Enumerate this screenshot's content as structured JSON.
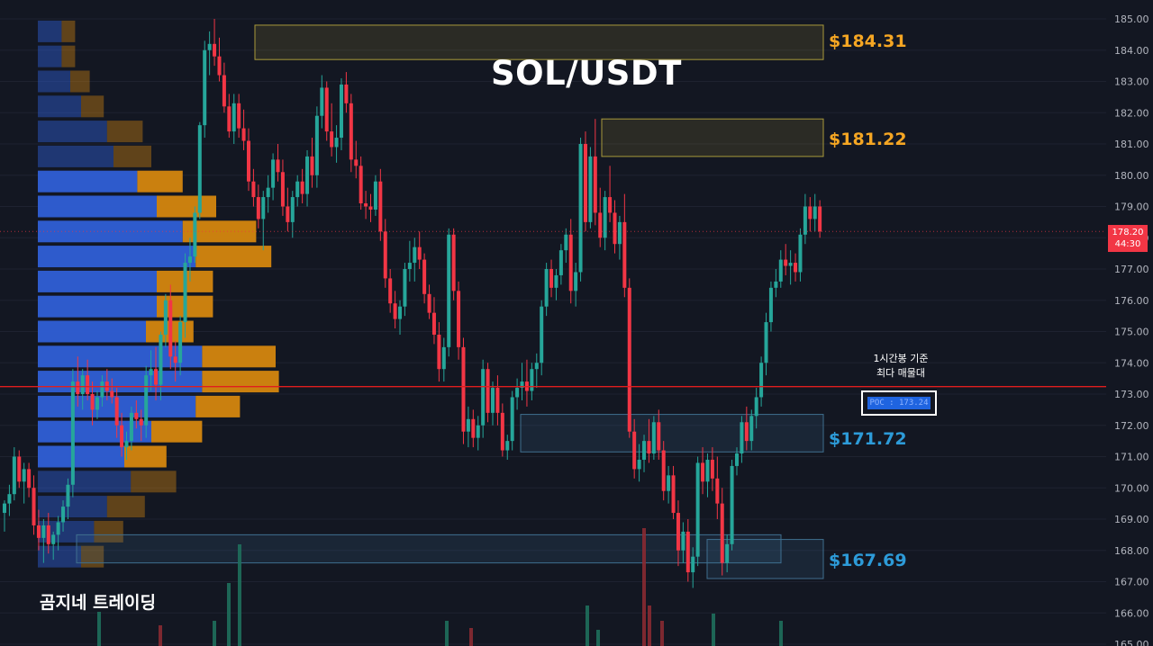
{
  "title": "SOL/USDT",
  "watermark": "곰지네 트레이딩",
  "annotation": {
    "line1": "1시간봉 기준",
    "line2": "최다 매물대",
    "poc_label": "POC : 173.24"
  },
  "levels": [
    {
      "price": 184.31,
      "label": "$184.31",
      "color": "yellow"
    },
    {
      "price": 181.22,
      "label": "$181.22",
      "color": "yellow"
    },
    {
      "price": 171.72,
      "label": "$171.72",
      "color": "blue"
    },
    {
      "price": 167.69,
      "label": "$167.69",
      "color": "blue"
    }
  ],
  "current_price": {
    "value": "178.20",
    "countdown": "44:30"
  },
  "colors": {
    "background": "#131722",
    "bull": "#26a69a",
    "bear": "#f23645",
    "poc_line": "#e01e1e",
    "level_yellow": "#f5a623",
    "level_blue": "#2d9bd8",
    "vp_blue": "#2f5fd6",
    "vp_orange": "#d4860f"
  },
  "chart_data": {
    "type": "candlestick",
    "timeframe": "1h",
    "y_axis": {
      "min": 165,
      "max": 185,
      "ticks": [
        "185.00",
        "184.00",
        "183.00",
        "182.00",
        "181.00",
        "180.00",
        "179.00",
        "178.00",
        "177.00",
        "176.00",
        "175.00",
        "174.00",
        "173.00",
        "172.00",
        "171.00",
        "170.00",
        "169.00",
        "168.00",
        "167.00",
        "166.00",
        "165.00"
      ]
    },
    "poc": 173.24,
    "zones": [
      {
        "top": 184.8,
        "bottom": 183.7,
        "label": "$184.31",
        "style": "yellow"
      },
      {
        "top": 181.8,
        "bottom": 180.6,
        "label": "$181.22",
        "style": "yellow"
      },
      {
        "top": 172.35,
        "bottom": 171.15,
        "label": "$171.72",
        "style": "blue"
      },
      {
        "top": 168.5,
        "bottom": 167.6,
        "label": "",
        "style": "blue"
      },
      {
        "top": 168.35,
        "bottom": 167.1,
        "label": "$167.69",
        "style": "blue"
      }
    ],
    "volume_profile": [
      {
        "price": 184.6,
        "buy": 22,
        "sell": 25
      },
      {
        "price": 183.8,
        "buy": 22,
        "sell": 25
      },
      {
        "price": 183.0,
        "buy": 30,
        "sell": 36
      },
      {
        "price": 182.2,
        "buy": 40,
        "sell": 42
      },
      {
        "price": 181.4,
        "buy": 64,
        "sell": 66
      },
      {
        "price": 180.6,
        "buy": 70,
        "sell": 70
      },
      {
        "price": 179.8,
        "buy": 92,
        "sell": 84
      },
      {
        "price": 179.0,
        "buy": 110,
        "sell": 110
      },
      {
        "price": 178.2,
        "buy": 134,
        "sell": 136
      },
      {
        "price": 177.4,
        "buy": 146,
        "sell": 140
      },
      {
        "price": 176.6,
        "buy": 110,
        "sell": 104
      },
      {
        "price": 175.8,
        "buy": 110,
        "sell": 104
      },
      {
        "price": 175.0,
        "buy": 100,
        "sell": 88
      },
      {
        "price": 174.2,
        "buy": 152,
        "sell": 136
      },
      {
        "price": 173.4,
        "buy": 152,
        "sell": 142
      },
      {
        "price": 172.6,
        "buy": 146,
        "sell": 82
      },
      {
        "price": 171.8,
        "buy": 105,
        "sell": 94
      },
      {
        "price": 171.0,
        "buy": 80,
        "sell": 78
      },
      {
        "price": 170.2,
        "buy": 86,
        "sell": 84
      },
      {
        "price": 169.4,
        "buy": 64,
        "sell": 70
      },
      {
        "price": 168.6,
        "buy": 52,
        "sell": 54
      },
      {
        "price": 167.8,
        "buy": 40,
        "sell": 42
      }
    ],
    "candles": [
      [
        169.2,
        169.6,
        168.6,
        169.5
      ],
      [
        169.5,
        170.1,
        169.1,
        169.8
      ],
      [
        169.8,
        171.3,
        169.6,
        171.0
      ],
      [
        171.0,
        171.2,
        170.0,
        170.2
      ],
      [
        170.2,
        170.8,
        169.5,
        170.6
      ],
      [
        170.6,
        170.8,
        169.7,
        170.0
      ],
      [
        170.0,
        170.4,
        168.5,
        168.8
      ],
      [
        168.8,
        169.3,
        168.0,
        168.4
      ],
      [
        168.4,
        169.0,
        167.6,
        168.8
      ],
      [
        168.8,
        169.2,
        167.9,
        168.2
      ],
      [
        168.2,
        168.6,
        167.7,
        168.5
      ],
      [
        168.5,
        169.1,
        168.0,
        168.9
      ],
      [
        168.9,
        169.6,
        168.6,
        169.4
      ],
      [
        169.4,
        170.3,
        169.0,
        170.1
      ],
      [
        170.1,
        173.8,
        169.7,
        173.4
      ],
      [
        173.4,
        174.2,
        172.6,
        173.0
      ],
      [
        173.0,
        173.8,
        172.5,
        173.6
      ],
      [
        173.6,
        174.1,
        172.8,
        173.0
      ],
      [
        173.0,
        173.4,
        172.0,
        172.5
      ],
      [
        172.5,
        173.1,
        172.2,
        172.9
      ],
      [
        172.9,
        173.6,
        172.6,
        173.4
      ],
      [
        173.4,
        173.8,
        172.8,
        173.1
      ],
      [
        173.1,
        173.5,
        172.7,
        172.9
      ],
      [
        172.9,
        173.2,
        171.6,
        172.0
      ],
      [
        172.0,
        172.4,
        171.0,
        171.3
      ],
      [
        171.3,
        171.8,
        170.9,
        171.5
      ],
      [
        171.5,
        172.6,
        171.2,
        172.4
      ],
      [
        172.4,
        172.8,
        171.9,
        172.2
      ],
      [
        172.2,
        172.5,
        171.5,
        172.0
      ],
      [
        172.0,
        173.9,
        171.6,
        173.6
      ],
      [
        173.6,
        174.4,
        173.1,
        173.8
      ],
      [
        173.8,
        174.5,
        172.8,
        173.3
      ],
      [
        173.3,
        175.0,
        172.8,
        174.9
      ],
      [
        174.9,
        176.2,
        174.5,
        176.0
      ],
      [
        176.0,
        176.5,
        173.8,
        174.2
      ],
      [
        174.2,
        174.7,
        173.4,
        174.0
      ],
      [
        174.0,
        175.5,
        173.6,
        175.3
      ],
      [
        175.3,
        177.5,
        174.8,
        177.2
      ],
      [
        177.2,
        178.0,
        176.6,
        177.4
      ],
      [
        177.4,
        179.0,
        177.2,
        178.8
      ],
      [
        178.8,
        181.7,
        178.6,
        181.6
      ],
      [
        181.6,
        184.3,
        181.2,
        184.0
      ],
      [
        184.0,
        184.6,
        183.2,
        184.2
      ],
      [
        184.2,
        185.0,
        183.5,
        183.8
      ],
      [
        183.8,
        184.4,
        183.0,
        183.2
      ],
      [
        183.2,
        183.6,
        182.0,
        182.2
      ],
      [
        182.2,
        182.6,
        181.2,
        181.4
      ],
      [
        181.4,
        182.6,
        181.0,
        182.3
      ],
      [
        182.3,
        182.6,
        181.2,
        181.5
      ],
      [
        181.5,
        182.1,
        180.8,
        181.1
      ],
      [
        181.1,
        181.5,
        179.5,
        179.8
      ],
      [
        179.8,
        180.2,
        179.0,
        179.3
      ],
      [
        179.3,
        179.7,
        178.3,
        178.6
      ],
      [
        178.6,
        179.5,
        177.6,
        179.3
      ],
      [
        179.3,
        180.0,
        178.8,
        179.6
      ],
      [
        179.6,
        180.7,
        179.2,
        180.5
      ],
      [
        180.5,
        181.0,
        179.8,
        180.1
      ],
      [
        180.1,
        180.5,
        178.7,
        179.0
      ],
      [
        179.0,
        179.6,
        178.2,
        178.5
      ],
      [
        178.5,
        179.5,
        178.0,
        179.3
      ],
      [
        179.3,
        180.0,
        179.0,
        179.8
      ],
      [
        179.8,
        180.2,
        179.1,
        179.4
      ],
      [
        179.4,
        180.8,
        179.0,
        180.6
      ],
      [
        180.6,
        181.2,
        179.6,
        180.0
      ],
      [
        180.0,
        182.2,
        179.6,
        181.9
      ],
      [
        181.9,
        183.2,
        181.5,
        182.8
      ],
      [
        182.8,
        183.0,
        181.1,
        181.4
      ],
      [
        181.4,
        182.3,
        180.6,
        180.9
      ],
      [
        180.9,
        181.6,
        180.4,
        181.2
      ],
      [
        181.2,
        183.1,
        180.8,
        182.9
      ],
      [
        182.9,
        183.3,
        182.0,
        182.3
      ],
      [
        182.3,
        182.6,
        180.1,
        180.5
      ],
      [
        180.5,
        181.1,
        179.9,
        180.3
      ],
      [
        180.3,
        180.6,
        178.9,
        179.1
      ],
      [
        179.1,
        179.5,
        178.6,
        179.0
      ],
      [
        179.0,
        179.4,
        178.5,
        178.9
      ],
      [
        178.9,
        180.0,
        178.7,
        179.8
      ],
      [
        179.8,
        180.2,
        177.9,
        178.2
      ],
      [
        178.2,
        178.6,
        176.4,
        176.7
      ],
      [
        176.7,
        177.0,
        175.6,
        175.9
      ],
      [
        175.9,
        176.3,
        175.1,
        175.4
      ],
      [
        175.4,
        176.0,
        174.9,
        175.8
      ],
      [
        175.8,
        177.2,
        175.5,
        177.0
      ],
      [
        177.0,
        177.9,
        176.6,
        177.2
      ],
      [
        177.2,
        178.0,
        176.6,
        177.7
      ],
      [
        177.7,
        178.2,
        177.0,
        177.3
      ],
      [
        177.3,
        177.5,
        175.9,
        176.2
      ],
      [
        176.2,
        176.5,
        175.4,
        175.6
      ],
      [
        175.6,
        176.1,
        174.6,
        174.9
      ],
      [
        174.9,
        175.3,
        173.4,
        173.8
      ],
      [
        173.8,
        174.8,
        173.4,
        174.5
      ],
      [
        174.5,
        178.3,
        174.2,
        178.1
      ],
      [
        178.1,
        178.3,
        176.0,
        176.3
      ],
      [
        176.3,
        176.6,
        174.1,
        174.5
      ],
      [
        174.5,
        174.8,
        171.4,
        171.8
      ],
      [
        171.8,
        172.6,
        171.3,
        172.2
      ],
      [
        172.2,
        172.5,
        171.3,
        171.6
      ],
      [
        171.6,
        172.3,
        171.2,
        172.0
      ],
      [
        172.0,
        174.1,
        171.6,
        173.8
      ],
      [
        173.8,
        174.0,
        172.1,
        172.4
      ],
      [
        172.4,
        173.4,
        172.0,
        173.2
      ],
      [
        173.2,
        173.6,
        172.0,
        172.4
      ],
      [
        172.4,
        172.7,
        171.0,
        171.2
      ],
      [
        171.2,
        171.7,
        170.9,
        171.5
      ],
      [
        171.5,
        173.1,
        171.2,
        172.9
      ],
      [
        172.9,
        173.5,
        172.5,
        173.2
      ],
      [
        173.2,
        174.0,
        172.8,
        173.4
      ],
      [
        173.4,
        174.1,
        172.6,
        173.1
      ],
      [
        173.1,
        174.0,
        172.8,
        173.8
      ],
      [
        173.8,
        174.3,
        173.2,
        174.0
      ],
      [
        174.0,
        176.0,
        173.6,
        175.8
      ],
      [
        175.8,
        177.2,
        175.5,
        177.0
      ],
      [
        177.0,
        177.3,
        176.1,
        176.4
      ],
      [
        176.4,
        177.0,
        176.0,
        176.8
      ],
      [
        176.8,
        177.8,
        176.5,
        177.6
      ],
      [
        177.6,
        178.3,
        177.2,
        178.1
      ],
      [
        178.1,
        178.6,
        175.9,
        176.3
      ],
      [
        176.3,
        177.2,
        175.8,
        176.9
      ],
      [
        176.9,
        181.2,
        176.6,
        181.0
      ],
      [
        181.0,
        181.4,
        178.2,
        178.5
      ],
      [
        178.5,
        180.9,
        178.3,
        180.6
      ],
      [
        180.6,
        181.8,
        178.4,
        178.8
      ],
      [
        178.8,
        179.6,
        177.7,
        178.0
      ],
      [
        178.0,
        179.5,
        177.6,
        179.3
      ],
      [
        179.3,
        180.3,
        178.5,
        178.8
      ],
      [
        178.8,
        179.2,
        177.5,
        177.8
      ],
      [
        177.8,
        178.7,
        177.3,
        178.5
      ],
      [
        178.5,
        179.4,
        176.1,
        176.4
      ],
      [
        176.4,
        176.7,
        171.6,
        171.8
      ],
      [
        171.8,
        172.2,
        170.3,
        170.6
      ],
      [
        170.6,
        171.4,
        170.2,
        170.9
      ],
      [
        170.9,
        171.7,
        170.5,
        171.5
      ],
      [
        171.5,
        172.2,
        170.8,
        171.1
      ],
      [
        171.1,
        172.3,
        170.9,
        172.1
      ],
      [
        172.1,
        172.5,
        170.9,
        171.2
      ],
      [
        171.2,
        171.5,
        169.6,
        169.9
      ],
      [
        169.9,
        170.7,
        169.5,
        170.4
      ],
      [
        170.4,
        170.7,
        169.0,
        169.2
      ],
      [
        169.2,
        169.6,
        167.5,
        168.0
      ],
      [
        168.0,
        168.9,
        167.6,
        168.6
      ],
      [
        168.6,
        169.0,
        167.0,
        167.3
      ],
      [
        167.3,
        168.1,
        166.8,
        167.8
      ],
      [
        167.8,
        171.0,
        167.5,
        170.8
      ],
      [
        170.8,
        171.3,
        169.8,
        170.2
      ],
      [
        170.2,
        171.1,
        169.7,
        170.9
      ],
      [
        170.9,
        171.3,
        169.9,
        170.3
      ],
      [
        170.3,
        171.0,
        169.0,
        169.5
      ],
      [
        169.5,
        170.0,
        167.2,
        167.6
      ],
      [
        167.6,
        168.5,
        167.3,
        168.2
      ],
      [
        168.2,
        170.9,
        168.0,
        170.7
      ],
      [
        170.7,
        171.3,
        170.4,
        171.1
      ],
      [
        171.1,
        172.3,
        170.8,
        172.1
      ],
      [
        172.1,
        172.6,
        171.2,
        171.5
      ],
      [
        171.5,
        172.5,
        171.2,
        172.3
      ],
      [
        172.3,
        173.2,
        171.9,
        172.9
      ],
      [
        172.9,
        174.2,
        172.6,
        174.0
      ],
      [
        174.0,
        175.6,
        173.6,
        175.3
      ],
      [
        175.3,
        176.6,
        175.0,
        176.4
      ],
      [
        176.4,
        177.0,
        176.1,
        176.6
      ],
      [
        176.6,
        177.6,
        176.4,
        177.3
      ],
      [
        177.3,
        177.8,
        176.8,
        177.1
      ],
      [
        177.1,
        177.6,
        176.5,
        177.2
      ],
      [
        177.2,
        177.5,
        176.6,
        176.9
      ],
      [
        176.9,
        178.3,
        176.6,
        178.1
      ],
      [
        178.1,
        179.4,
        177.8,
        179.0
      ],
      [
        179.0,
        179.3,
        178.2,
        178.6
      ],
      [
        178.6,
        179.4,
        178.2,
        179.0
      ],
      [
        179.0,
        179.2,
        178.0,
        178.2
      ]
    ]
  }
}
